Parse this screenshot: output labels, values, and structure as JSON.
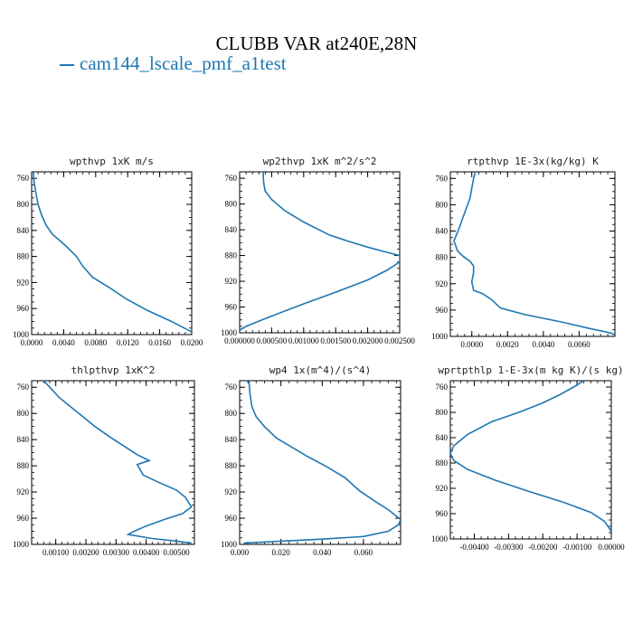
{
  "figure": {
    "title": "CLUBB VAR at240E,28N",
    "legend": "cam144_lscale_pmf_a1test",
    "line_color": "#1f77b4"
  },
  "chart_data": [
    {
      "type": "line",
      "title": "wpthvp  1xK m/s",
      "xlim": [
        0,
        0.02
      ],
      "ylim": [
        1000,
        750
      ],
      "xticks": [
        0,
        0.004,
        0.008,
        0.012,
        0.016,
        0.02
      ],
      "xtick_labels": [
        "0.0000",
        "0.0040",
        "0.0080",
        "0.0120",
        "0.0160",
        "0.0200"
      ],
      "yticks": [
        760,
        800,
        840,
        880,
        920,
        960,
        1000
      ],
      "ytick_labels": [
        "760",
        "800",
        "840",
        "880",
        "920",
        "960",
        "1000"
      ],
      "x": [
        0.0002,
        0.0003,
        0.0005,
        0.0008,
        0.0012,
        0.0018,
        0.0026,
        0.0042,
        0.0056,
        0.0064,
        0.0076,
        0.0096,
        0.0118,
        0.0145,
        0.0175,
        0.02
      ],
      "y": [
        750,
        765,
        780,
        800,
        815,
        832,
        846,
        863,
        880,
        895,
        912,
        927,
        945,
        963,
        980,
        996
      ]
    },
    {
      "type": "line",
      "title": "wp2thvp  1xK m^2/s^2",
      "xlim": [
        0,
        0.0025
      ],
      "ylim": [
        1000,
        750
      ],
      "xticks": [
        0,
        0.0005,
        0.001,
        0.0015,
        0.002,
        0.0025
      ],
      "xtick_labels": [
        "0.000000",
        "0.000500",
        "0.001000",
        "0.001500",
        "0.002000",
        "0.002500"
      ],
      "yticks": [
        760,
        800,
        840,
        880,
        920,
        960,
        1000
      ],
      "ytick_labels": [
        "760",
        "800",
        "840",
        "880",
        "920",
        "960",
        "1000"
      ],
      "x": [
        0.00037,
        0.00037,
        0.00038,
        0.0004,
        0.0005,
        0.0007,
        0.001,
        0.0014,
        0.0017,
        0.002,
        0.0023,
        0.0025,
        0.0025,
        0.0023,
        0.002,
        0.0015,
        0.001,
        0.00045,
        0.0001,
        0.0
      ],
      "y": [
        750,
        760,
        770,
        780,
        793,
        810,
        828,
        848,
        858,
        867,
        875,
        880,
        890,
        903,
        918,
        937,
        955,
        976,
        990,
        996
      ]
    },
    {
      "type": "line",
      "title": "rtpthvp  1E-3x(kg/kg) K",
      "xlim": [
        -0.0012,
        0.008
      ],
      "ylim": [
        1000,
        750
      ],
      "xticks": [
        0,
        0.002,
        0.004,
        0.006
      ],
      "xtick_labels": [
        "0.0000",
        "0.0020",
        "0.0040",
        "0.0060"
      ],
      "yticks": [
        760,
        800,
        840,
        880,
        920,
        960,
        1000
      ],
      "ytick_labels": [
        "760",
        "800",
        "840",
        "880",
        "920",
        "960",
        "1000"
      ],
      "x": [
        0.0002,
        0.0001,
        0.0,
        -0.0001,
        -0.0003,
        -0.0005,
        -0.0007,
        -0.001,
        -0.0008,
        -0.0005,
        -0.0001,
        0.0001,
        0.0001,
        0.0,
        0.0001,
        0.0006,
        0.0011,
        0.0016,
        0.003,
        0.005,
        0.0066,
        0.0078,
        0.008
      ],
      "y": [
        750,
        760,
        775,
        790,
        805,
        820,
        835,
        855,
        870,
        878,
        886,
        893,
        903,
        917,
        930,
        935,
        944,
        957,
        967,
        978,
        988,
        995,
        998
      ]
    },
    {
      "type": "line",
      "title": "thlpthvp  1xK^2",
      "xlim": [
        0.0002,
        0.0056
      ],
      "ylim": [
        1000,
        750
      ],
      "xticks": [
        0.001,
        0.002,
        0.003,
        0.004,
        0.005
      ],
      "xtick_labels": [
        "0.00100",
        "0.00200",
        "0.00300",
        "0.00400",
        "0.00500"
      ],
      "yticks": [
        760,
        800,
        840,
        880,
        920,
        960,
        1000
      ],
      "ytick_labels": [
        "760",
        "800",
        "840",
        "880",
        "920",
        "960",
        "1000"
      ],
      "x": [
        0.0006,
        0.0008,
        0.0011,
        0.0015,
        0.0019,
        0.0023,
        0.0028,
        0.0033,
        0.0037,
        0.0041,
        0.0037,
        0.0039,
        0.0044,
        0.005,
        0.0053,
        0.0055,
        0.0052,
        0.0046,
        0.004,
        0.0036,
        0.0034,
        0.0042,
        0.005,
        0.0055
      ],
      "y": [
        750,
        760,
        775,
        790,
        805,
        820,
        836,
        851,
        863,
        872,
        878,
        894,
        905,
        917,
        928,
        943,
        953,
        962,
        972,
        980,
        985,
        991,
        995,
        998
      ]
    },
    {
      "type": "line",
      "title": "wp4  1x(m^4)/(s^4)",
      "xlim": [
        0,
        0.078
      ],
      "ylim": [
        1000,
        750
      ],
      "xticks": [
        0,
        0.02,
        0.04,
        0.06
      ],
      "xtick_labels": [
        "0.000",
        "0.020",
        "0.040",
        "0.060"
      ],
      "yticks": [
        760,
        800,
        840,
        880,
        920,
        960,
        1000
      ],
      "ytick_labels": [
        "760",
        "800",
        "840",
        "880",
        "920",
        "960",
        "1000"
      ],
      "x": [
        0.0045,
        0.005,
        0.006,
        0.008,
        0.012,
        0.018,
        0.025,
        0.033,
        0.042,
        0.051,
        0.058,
        0.066,
        0.072,
        0.078,
        0.077,
        0.072,
        0.06,
        0.04,
        0.015,
        0.002
      ],
      "y": [
        750,
        770,
        790,
        805,
        820,
        838,
        851,
        866,
        881,
        898,
        918,
        935,
        947,
        962,
        970,
        980,
        988,
        992,
        996,
        998
      ]
    },
    {
      "type": "line",
      "title": "wprtpthlp  1-E-3x(m kg K)/(s kg)",
      "xlim": [
        -0.0047,
        0
      ],
      "ylim": [
        1000,
        750
      ],
      "xticks": [
        -0.004,
        -0.003,
        -0.002,
        -0.001,
        0
      ],
      "xtick_labels": [
        "-0.00400",
        "-0.00300",
        "-0.00200",
        "-0.00100",
        "0.00000"
      ],
      "yticks": [
        760,
        800,
        840,
        880,
        920,
        960,
        1000
      ],
      "ytick_labels": [
        "760",
        "800",
        "840",
        "880",
        "920",
        "960",
        "1000"
      ],
      "x": [
        -0.0008,
        -0.0011,
        -0.0015,
        -0.002,
        -0.0027,
        -0.0035,
        -0.0042,
        -0.0046,
        -0.0047,
        -0.0046,
        -0.0042,
        -0.0034,
        -0.0024,
        -0.0014,
        -0.0006,
        -0.0002,
        0.0
      ],
      "y": [
        750,
        760,
        772,
        785,
        800,
        815,
        835,
        853,
        865,
        876,
        890,
        907,
        925,
        942,
        958,
        972,
        988
      ]
    }
  ]
}
